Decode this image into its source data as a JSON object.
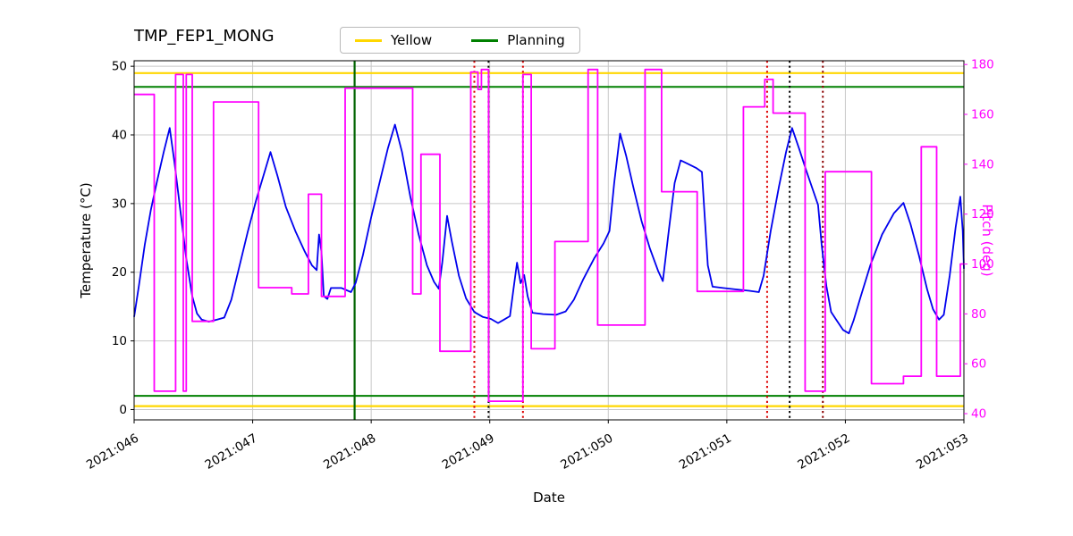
{
  "title": "TMP_FEP1_MONG",
  "legend": {
    "position": "top",
    "items": [
      {
        "label": "Yellow",
        "color": "#ffd700"
      },
      {
        "label": "Planning",
        "color": "#008000"
      }
    ]
  },
  "axes": {
    "xlabel": "Date",
    "ylabel_left": "Temperature (°C)",
    "ylabel_right": "Pitch (deg)"
  },
  "chart_data": {
    "type": "line",
    "title": "TMP_FEP1_MONG",
    "xlabel": "Date",
    "ylabel": "Temperature (°C)",
    "y2label": "Pitch (deg)",
    "legend": [
      "Yellow",
      "Planning"
    ],
    "legend_position": "top",
    "grid": true,
    "xlim": [
      46,
      53
    ],
    "ylim": [
      -1.5,
      50.8
    ],
    "y2lim": [
      37.5,
      181.5
    ],
    "x_ticks": [
      {
        "value": 46,
        "label": "2021:046"
      },
      {
        "value": 47,
        "label": "2021:047"
      },
      {
        "value": 48,
        "label": "2021:048"
      },
      {
        "value": 49,
        "label": "2021:049"
      },
      {
        "value": 50,
        "label": "2021:050"
      },
      {
        "value": 51,
        "label": "2021:051"
      },
      {
        "value": 52,
        "label": "2021:052"
      },
      {
        "value": 53,
        "label": "2021:053"
      }
    ],
    "y_ticks_left": [
      0,
      10,
      20,
      30,
      40,
      50
    ],
    "y_ticks_right": [
      40,
      60,
      80,
      100,
      120,
      140,
      160,
      180
    ],
    "colors": {
      "temperature": "#0000ee",
      "pitch": "#ff00ff",
      "yellow_limit": "#ffd700",
      "planning_limit": "#008000",
      "grid": "#c8c8c8"
    },
    "hlines": [
      {
        "name": "yellow-limit-high",
        "y": 49,
        "color": "#ffd700",
        "width": 2.2
      },
      {
        "name": "yellow-limit-low",
        "y": 0.5,
        "color": "#ffd700",
        "width": 2.2
      },
      {
        "name": "planning-limit-high",
        "y": 47,
        "color": "#008000",
        "width": 2
      },
      {
        "name": "planning-limit-low",
        "y": 2,
        "color": "#008000",
        "width": 2
      }
    ],
    "vlines": [
      {
        "name": "green-solid-line",
        "x": 47.86,
        "color": "#006400",
        "style": "solid",
        "width": 2.2
      },
      {
        "name": "red-dotted-line-1",
        "x": 48.87,
        "color": "#dd0000",
        "style": "dotted",
        "width": 2
      },
      {
        "name": "black-dotted-line-1",
        "x": 48.99,
        "color": "#000000",
        "style": "dotted",
        "width": 2
      },
      {
        "name": "red-dotted-line-2",
        "x": 49.28,
        "color": "#dd0000",
        "style": "dotted",
        "width": 2
      },
      {
        "name": "red-dotted-line-3",
        "x": 51.34,
        "color": "#dd0000",
        "style": "dotted",
        "width": 2
      },
      {
        "name": "black-dotted-line-2",
        "x": 51.53,
        "color": "#000000",
        "style": "dotted",
        "width": 2
      },
      {
        "name": "darkred-dotted-line",
        "x": 51.81,
        "color": "#8b0000",
        "style": "dotted",
        "width": 2
      }
    ],
    "series": [
      {
        "name": "Temperature",
        "axis": "left",
        "color": "#0000ee",
        "style": "line",
        "width": 1.8,
        "points": [
          [
            46.0,
            13.5
          ],
          [
            46.04,
            18
          ],
          [
            46.09,
            24
          ],
          [
            46.14,
            29
          ],
          [
            46.19,
            33
          ],
          [
            46.25,
            37.5
          ],
          [
            46.3,
            41
          ],
          [
            46.34,
            36
          ],
          [
            46.39,
            29
          ],
          [
            46.44,
            22
          ],
          [
            46.49,
            16.5
          ],
          [
            46.53,
            14
          ],
          [
            46.57,
            13.1
          ],
          [
            46.63,
            12.8
          ],
          [
            46.7,
            13.1
          ],
          [
            46.76,
            13.4
          ],
          [
            46.82,
            16
          ],
          [
            46.89,
            21
          ],
          [
            46.96,
            26
          ],
          [
            47.03,
            30.5
          ],
          [
            47.09,
            34
          ],
          [
            47.15,
            37.5
          ],
          [
            47.21,
            34
          ],
          [
            47.28,
            29.5
          ],
          [
            47.36,
            26
          ],
          [
            47.44,
            23
          ],
          [
            47.5,
            21
          ],
          [
            47.54,
            20.3
          ],
          [
            47.56,
            25.5
          ],
          [
            47.58,
            23
          ],
          [
            47.6,
            16.5
          ],
          [
            47.63,
            16.1
          ],
          [
            47.66,
            17.7
          ],
          [
            47.75,
            17.7
          ],
          [
            47.83,
            17.1
          ],
          [
            47.87,
            18.5
          ],
          [
            47.93,
            22.5
          ],
          [
            48.0,
            28
          ],
          [
            48.07,
            33
          ],
          [
            48.14,
            38
          ],
          [
            48.2,
            41.5
          ],
          [
            48.26,
            37.5
          ],
          [
            48.33,
            31
          ],
          [
            48.4,
            25.5
          ],
          [
            48.47,
            21
          ],
          [
            48.53,
            18.6
          ],
          [
            48.57,
            17.6
          ],
          [
            48.6,
            21.5
          ],
          [
            48.64,
            28.2
          ],
          [
            48.68,
            24.5
          ],
          [
            48.74,
            19.5
          ],
          [
            48.8,
            16.2
          ],
          [
            48.87,
            14.2
          ],
          [
            48.94,
            13.5
          ],
          [
            49.01,
            13.2
          ],
          [
            49.07,
            12.6
          ],
          [
            49.12,
            13.1
          ],
          [
            49.17,
            13.6
          ],
          [
            49.2,
            17.5
          ],
          [
            49.23,
            21.4
          ],
          [
            49.26,
            18.4
          ],
          [
            49.29,
            19.6
          ],
          [
            49.32,
            16.5
          ],
          [
            49.36,
            14.1
          ],
          [
            49.45,
            13.9
          ],
          [
            49.56,
            13.8
          ],
          [
            49.64,
            14.3
          ],
          [
            49.71,
            16
          ],
          [
            49.79,
            19
          ],
          [
            49.88,
            22
          ],
          [
            49.96,
            24.2
          ],
          [
            50.01,
            26
          ],
          [
            50.05,
            33
          ],
          [
            50.1,
            40.2
          ],
          [
            50.15,
            37
          ],
          [
            50.21,
            32.5
          ],
          [
            50.28,
            27.5
          ],
          [
            50.35,
            23.5
          ],
          [
            50.42,
            20.2
          ],
          [
            50.46,
            18.7
          ],
          [
            50.51,
            26
          ],
          [
            50.56,
            33
          ],
          [
            50.61,
            36.3
          ],
          [
            50.67,
            35.8
          ],
          [
            50.74,
            35.2
          ],
          [
            50.79,
            34.6
          ],
          [
            50.81,
            29
          ],
          [
            50.84,
            21
          ],
          [
            50.88,
            17.9
          ],
          [
            50.97,
            17.7
          ],
          [
            51.08,
            17.5
          ],
          [
            51.19,
            17.3
          ],
          [
            51.27,
            17.1
          ],
          [
            51.31,
            19.5
          ],
          [
            51.37,
            26
          ],
          [
            51.44,
            32.5
          ],
          [
            51.5,
            37.5
          ],
          [
            51.55,
            41
          ],
          [
            51.61,
            38
          ],
          [
            51.67,
            34.8
          ],
          [
            51.73,
            31.8
          ],
          [
            51.77,
            29.8
          ],
          [
            51.8,
            24
          ],
          [
            51.84,
            18
          ],
          [
            51.88,
            14.2
          ],
          [
            51.93,
            12.9
          ],
          [
            51.98,
            11.6
          ],
          [
            52.03,
            11.1
          ],
          [
            52.07,
            13
          ],
          [
            52.13,
            16.5
          ],
          [
            52.21,
            21
          ],
          [
            52.31,
            25.5
          ],
          [
            52.41,
            28.6
          ],
          [
            52.49,
            30.1
          ],
          [
            52.55,
            27
          ],
          [
            52.62,
            22.5
          ],
          [
            52.69,
            17.5
          ],
          [
            52.74,
            14.6
          ],
          [
            52.79,
            13.1
          ],
          [
            52.83,
            13.8
          ],
          [
            52.88,
            19.5
          ],
          [
            52.93,
            26.5
          ],
          [
            52.97,
            31
          ],
          [
            52.99,
            26
          ],
          [
            53.0,
            20.5
          ]
        ]
      },
      {
        "name": "Pitch",
        "axis": "right",
        "color": "#ff00ff",
        "style": "step",
        "width": 1.8,
        "points": [
          [
            46.0,
            168
          ],
          [
            46.17,
            49
          ],
          [
            46.35,
            176
          ],
          [
            46.415,
            49
          ],
          [
            46.44,
            176
          ],
          [
            46.49,
            77
          ],
          [
            46.67,
            165
          ],
          [
            47.05,
            90.5
          ],
          [
            47.33,
            88
          ],
          [
            47.47,
            128
          ],
          [
            47.58,
            87
          ],
          [
            47.78,
            170.5
          ],
          [
            48.35,
            88
          ],
          [
            48.42,
            144
          ],
          [
            48.58,
            65
          ],
          [
            48.84,
            177
          ],
          [
            48.9,
            170
          ],
          [
            48.93,
            178
          ],
          [
            48.99,
            45
          ],
          [
            49.28,
            176
          ],
          [
            49.35,
            66
          ],
          [
            49.55,
            109
          ],
          [
            49.83,
            178
          ],
          [
            49.91,
            75.5
          ],
          [
            50.31,
            178
          ],
          [
            50.45,
            129
          ],
          [
            50.75,
            89
          ],
          [
            51.14,
            163
          ],
          [
            51.32,
            174
          ],
          [
            51.39,
            160.5
          ],
          [
            51.66,
            49
          ],
          [
            51.83,
            137
          ],
          [
            52.22,
            52
          ],
          [
            52.49,
            55
          ],
          [
            52.64,
            147
          ],
          [
            52.77,
            55
          ],
          [
            52.97,
            100
          ]
        ]
      }
    ]
  }
}
